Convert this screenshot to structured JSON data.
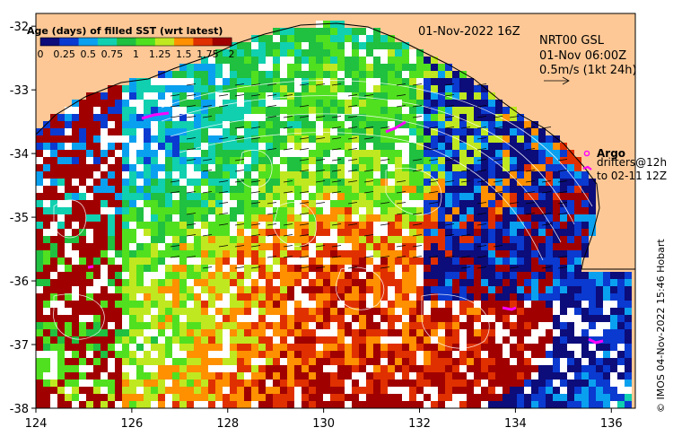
{
  "map": {
    "title_date": "01-Nov-2022 16Z",
    "region": "NRT00 GSL",
    "vector_time": "01-Nov 06:00Z",
    "vector_scale": "0.5m/s (1kt 24h)",
    "credit": "© IMOS 04-Nov-2022 15:46 Hobart",
    "lon_range": [
      124,
      136.5
    ],
    "lat_range": [
      -38,
      -31.8
    ],
    "lon_ticks": [
      "124",
      "126",
      "128",
      "130",
      "132",
      "134",
      "136"
    ],
    "lat_ticks": [
      "-32",
      "-33",
      "-34",
      "-35",
      "-36",
      "-37",
      "-38"
    ],
    "land_color": "#fdc896",
    "missing_color": "#ffffff"
  },
  "legend": {
    "title": "Age (days) of filled SST (wrt latest)",
    "ticks": [
      "0",
      "0.25",
      "0.5",
      "0.75",
      "1",
      "1.25",
      "1.5",
      "1.75",
      "2"
    ],
    "colors": [
      "#0c0c7a",
      "#0a3ad0",
      "#0aa0f0",
      "#10d0b0",
      "#20c040",
      "#50e020",
      "#c0e820",
      "#ff9000",
      "#e03000",
      "#a00000"
    ]
  },
  "argo": {
    "label_1": "Argo",
    "label_2": "drifters@12h",
    "label_3": "to 02-11 12Z",
    "color": "#ff00ff"
  }
}
